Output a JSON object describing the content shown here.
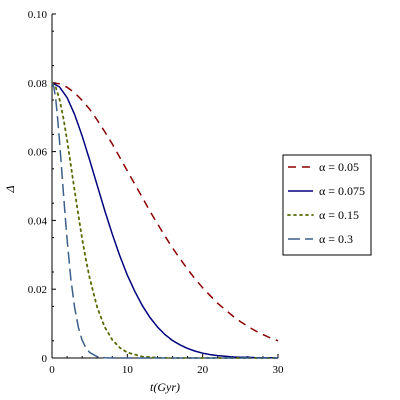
{
  "chart_data": {
    "type": "line",
    "xlabel": "t(Gyr)",
    "ylabel": "Δ",
    "xlim": [
      0,
      30
    ],
    "ylim": [
      0,
      0.1
    ],
    "xticks": [
      "0",
      "10",
      "20",
      "30"
    ],
    "yticks": [
      "0",
      "0.02",
      "0.04",
      "0.06",
      "0.08",
      "0.10"
    ],
    "grid": false,
    "legend_position": "right",
    "series": [
      {
        "name": "α = 0.05",
        "color": "#8b0000",
        "style": "dash",
        "x": [
          0,
          1,
          2,
          3,
          4,
          5,
          6,
          7,
          8,
          9,
          10,
          11,
          12,
          13,
          14,
          15,
          16,
          17,
          18,
          19,
          20,
          21,
          22,
          23,
          24,
          25,
          26,
          27,
          28,
          29,
          30
        ],
        "y": [
          0.08,
          0.0797,
          0.0787,
          0.0771,
          0.0749,
          0.0723,
          0.0692,
          0.0658,
          0.0622,
          0.0583,
          0.0544,
          0.0505,
          0.0466,
          0.0427,
          0.039,
          0.0354,
          0.032,
          0.0288,
          0.0258,
          0.023,
          0.0204,
          0.0181,
          0.0159,
          0.014,
          0.0122,
          0.0106,
          0.0092,
          0.0079,
          0.0068,
          0.0058,
          0.005
        ]
      },
      {
        "name": "α = 0.075",
        "color": "#00007f",
        "style": "solid",
        "x": [
          0,
          1,
          2,
          3,
          4,
          5,
          6,
          7,
          8,
          9,
          10,
          11,
          12,
          13,
          14,
          15,
          16,
          17,
          18,
          19,
          20,
          21,
          22,
          23,
          24,
          25,
          26,
          27,
          28,
          29,
          30
        ],
        "y": [
          0.08,
          0.0788,
          0.0757,
          0.0708,
          0.0646,
          0.0575,
          0.0502,
          0.0429,
          0.036,
          0.0297,
          0.0241,
          0.0193,
          0.0152,
          0.0118,
          0.009,
          0.0068,
          0.0051,
          0.0038,
          0.0028,
          0.002,
          0.0014,
          0.001,
          0.0007,
          0.0005,
          0.0003,
          0.0002,
          0.0002,
          0.0001,
          0.0001,
          0.0001,
          0.0
        ]
      },
      {
        "name": "α = 0.15",
        "color": "#556b00",
        "style": "dot",
        "x": [
          0,
          0.5,
          1,
          1.5,
          2,
          2.5,
          3,
          3.5,
          4,
          4.5,
          5,
          6,
          7,
          8,
          9,
          10,
          12,
          14,
          16,
          18,
          20,
          25,
          30
        ],
        "y": [
          0.08,
          0.0787,
          0.0752,
          0.0699,
          0.0633,
          0.0561,
          0.0487,
          0.0415,
          0.0347,
          0.0286,
          0.0232,
          0.0147,
          0.009,
          0.0053,
          0.003,
          0.0016,
          0.0004,
          0.0001,
          0.0,
          0.0,
          0.0,
          0.0,
          0.0
        ]
      },
      {
        "name": "α = 0.3",
        "color": "#3a5f8a",
        "style": "longdash",
        "x": [
          0,
          0.25,
          0.5,
          0.75,
          1,
          1.25,
          1.5,
          1.75,
          2,
          2.5,
          3,
          3.5,
          4,
          4.5,
          5,
          6,
          7,
          8,
          10,
          15,
          20,
          30
        ],
        "y": [
          0.08,
          0.0787,
          0.0751,
          0.0697,
          0.0631,
          0.0558,
          0.0484,
          0.0412,
          0.0345,
          0.0231,
          0.0147,
          0.0089,
          0.0052,
          0.0029,
          0.0016,
          0.0004,
          0.0001,
          0.0,
          0.0,
          0.0,
          0.0,
          0.0
        ]
      }
    ]
  }
}
